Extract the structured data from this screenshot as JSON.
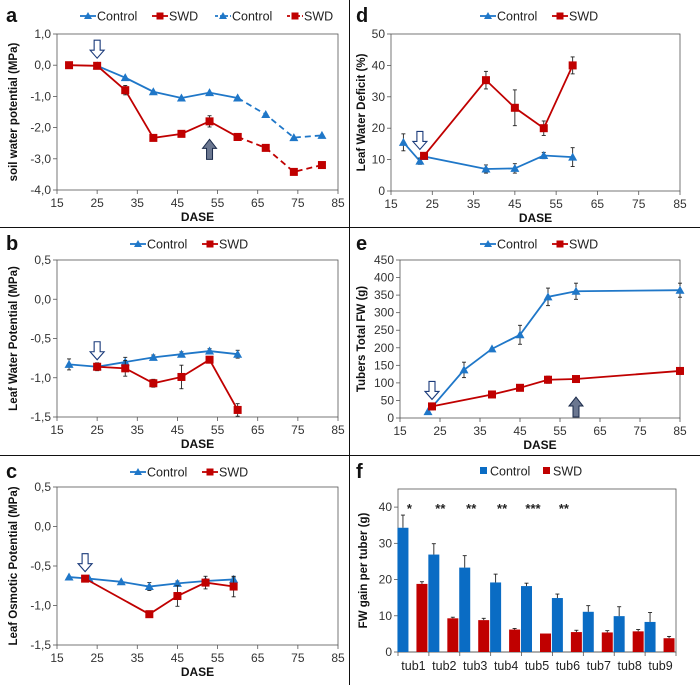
{
  "colors": {
    "control": "#1f77c8",
    "swd": "#c00000",
    "bar_control": "#0a6cc4",
    "bar_swd": "#c00000",
    "axis": "#444444"
  },
  "chart_data": [
    {
      "id": "a",
      "type": "line",
      "panel_label": "a",
      "xlabel": "DASE",
      "ylabel": "soil water potential (MPa)",
      "xlim": [
        15,
        85
      ],
      "xticks": [
        15,
        25,
        35,
        45,
        55,
        65,
        75,
        85
      ],
      "ylim": [
        -4.0,
        1.0
      ],
      "yticks": [
        -4.0,
        -3.0,
        -2.0,
        -1.0,
        0.0,
        1.0
      ],
      "ytick_labels": [
        "-4,0",
        "-3,0",
        "-2,0",
        "-1,0",
        "0,0",
        "1,0"
      ],
      "legend": [
        "Control",
        "SWD",
        "Control",
        "SWD"
      ],
      "series": [
        {
          "name": "Control",
          "marker": "triangle",
          "style": "solid",
          "x": [
            25,
            32,
            39,
            46,
            53,
            60
          ],
          "y": [
            -0.02,
            -0.4,
            -0.85,
            -1.05,
            -0.88,
            -1.05
          ]
        },
        {
          "name": "SWD",
          "marker": "square",
          "style": "solid",
          "x": [
            18,
            25,
            32,
            39,
            46,
            53,
            60
          ],
          "y": [
            0.0,
            -0.02,
            -0.8,
            -2.33,
            -2.2,
            -1.8,
            -2.3
          ],
          "err": [
            0,
            0,
            0.15,
            0,
            0,
            0.18,
            0
          ]
        },
        {
          "name": "Control",
          "marker": "triangle",
          "style": "dashed",
          "x": [
            60,
            67,
            74,
            81
          ],
          "y": [
            -1.05,
            -1.58,
            -2.32,
            -2.25
          ]
        },
        {
          "name": "SWD",
          "marker": "square",
          "style": "dashed",
          "x": [
            60,
            67,
            74,
            81
          ],
          "y": [
            -2.3,
            -2.65,
            -3.42,
            -3.2
          ]
        }
      ],
      "arrows": [
        {
          "x": 25,
          "y": 0.0,
          "dir": "down",
          "style": "hollow"
        },
        {
          "x": 53,
          "y": -1.8,
          "dir": "up",
          "style": "filled"
        }
      ]
    },
    {
      "id": "d",
      "type": "line",
      "panel_label": "d",
      "xlabel": "DASE",
      "ylabel": "Leaf  Water Deficit (%)",
      "xlim": [
        15,
        85
      ],
      "xticks": [
        15,
        25,
        35,
        45,
        55,
        65,
        75,
        85
      ],
      "ylim": [
        0,
        50
      ],
      "yticks": [
        0,
        10,
        20,
        30,
        40,
        50
      ],
      "ytick_labels": [
        "0",
        "10",
        "20",
        "30",
        "40",
        "50"
      ],
      "legend": [
        "Control",
        "SWD"
      ],
      "series": [
        {
          "name": "Control",
          "marker": "triangle",
          "style": "solid",
          "x": [
            18,
            22,
            23,
            38,
            45,
            52,
            59
          ],
          "y": [
            15.5,
            9.5,
            11.0,
            7.0,
            7.2,
            11.3,
            10.8
          ],
          "err": [
            2.7,
            1.0,
            0,
            1.3,
            1.5,
            1.0,
            3.0
          ]
        },
        {
          "name": "SWD",
          "marker": "square",
          "style": "solid",
          "x": [
            23,
            38,
            45,
            52,
            59
          ],
          "y": [
            11.2,
            35.3,
            26.5,
            20.0,
            40.0
          ],
          "err": [
            0,
            2.8,
            5.7,
            2.3,
            2.7
          ]
        }
      ],
      "arrows": [
        {
          "x": 22,
          "y": 11,
          "dir": "down",
          "style": "hollow"
        }
      ]
    },
    {
      "id": "b",
      "type": "line",
      "panel_label": "b",
      "xlabel": "DASE",
      "ylabel": "Leaf Water Potential (MPa)",
      "xlim": [
        15,
        85
      ],
      "xticks": [
        15,
        25,
        35,
        45,
        55,
        65,
        75,
        85
      ],
      "ylim": [
        -1.5,
        0.5
      ],
      "yticks": [
        -1.5,
        -1.0,
        -0.5,
        0.0,
        0.5
      ],
      "ytick_labels": [
        "-1,5",
        "-1,0",
        "-0,5",
        "0,0",
        "0,5"
      ],
      "legend": [
        "Control",
        "SWD"
      ],
      "series": [
        {
          "name": "Control",
          "marker": "triangle",
          "style": "solid",
          "x": [
            18,
            25,
            32,
            39,
            46,
            53,
            60
          ],
          "y": [
            -0.83,
            -0.86,
            -0.8,
            -0.74,
            -0.7,
            -0.66,
            -0.7
          ],
          "err": [
            0.07,
            0.05,
            0.06,
            0.03,
            0.03,
            0.03,
            0.05
          ]
        },
        {
          "name": "SWD",
          "marker": "square",
          "style": "solid",
          "x": [
            25,
            32,
            39,
            46,
            53,
            60
          ],
          "y": [
            -0.86,
            -0.88,
            -1.07,
            -0.99,
            -0.77,
            -1.41
          ],
          "err": [
            0.03,
            0.1,
            0.05,
            0.15,
            0.03,
            0.08
          ]
        }
      ],
      "arrows": [
        {
          "x": 25,
          "y": -0.86,
          "dir": "down",
          "style": "hollow"
        }
      ]
    },
    {
      "id": "e",
      "type": "line",
      "panel_label": "e",
      "xlabel": "DASE",
      "ylabel": "Tubers Total FW (g)",
      "xlim": [
        15,
        85
      ],
      "xticks": [
        15,
        25,
        35,
        45,
        55,
        65,
        75,
        85
      ],
      "ylim": [
        0,
        450
      ],
      "yticks": [
        0,
        50,
        100,
        150,
        200,
        250,
        300,
        350,
        400,
        450
      ],
      "ytick_labels": [
        "0",
        "50",
        "100",
        "150",
        "200",
        "250",
        "300",
        "350",
        "400",
        "450"
      ],
      "legend": [
        "Control",
        "SWD"
      ],
      "series": [
        {
          "name": "Control",
          "marker": "triangle",
          "style": "solid",
          "x": [
            22,
            31,
            38,
            45,
            52,
            59,
            85
          ],
          "y": [
            18,
            137,
            197,
            237,
            345,
            361,
            364
          ],
          "err": [
            0,
            22,
            0,
            27,
            25,
            23,
            20
          ]
        },
        {
          "name": "SWD",
          "marker": "square",
          "style": "solid",
          "x": [
            23,
            38,
            45,
            52,
            59,
            85
          ],
          "y": [
            33,
            67,
            86,
            109,
            111,
            134
          ],
          "err": [
            10,
            0,
            0,
            10,
            0,
            10
          ]
        }
      ],
      "arrows": [
        {
          "x": 23,
          "y": 33,
          "dir": "down",
          "style": "hollow"
        },
        {
          "x": 59,
          "y": 111,
          "dir": "up",
          "style": "filled"
        }
      ]
    },
    {
      "id": "c",
      "type": "line",
      "panel_label": "c",
      "xlabel": "DASE",
      "ylabel": "Leaf Osmotic Potential (MPa)",
      "xlim": [
        15,
        85
      ],
      "xticks": [
        15,
        25,
        35,
        45,
        55,
        65,
        75,
        85
      ],
      "ylim": [
        -1.5,
        0.5
      ],
      "yticks": [
        -1.5,
        -1.0,
        -0.5,
        0.0,
        0.5
      ],
      "ytick_labels": [
        "-1,5",
        "-1,0",
        "-0,5",
        "0,0",
        "0,5"
      ],
      "legend": [
        "Control",
        "SWD"
      ],
      "series": [
        {
          "name": "Control",
          "marker": "triangle",
          "style": "solid",
          "x": [
            18,
            23,
            31,
            38,
            45,
            52,
            59
          ],
          "y": [
            -0.64,
            -0.66,
            -0.7,
            -0.76,
            -0.72,
            -0.69,
            -0.67
          ],
          "err": [
            0,
            0,
            0,
            0.05,
            0.03,
            0.02,
            0.03
          ]
        },
        {
          "name": "SWD",
          "marker": "square",
          "style": "solid",
          "x": [
            22,
            38,
            45,
            52,
            59
          ],
          "y": [
            -0.66,
            -1.11,
            -0.88,
            -0.71,
            -0.76
          ],
          "err": [
            0,
            0.04,
            0.13,
            0.08,
            0.13
          ]
        }
      ],
      "arrows": [
        {
          "x": 22,
          "y": -0.66,
          "dir": "down",
          "style": "hollow"
        }
      ]
    },
    {
      "id": "f",
      "type": "bar",
      "panel_label": "f",
      "xlabel": "",
      "ylabel": "FW gain per tuber (g)",
      "ylim": [
        0,
        45
      ],
      "yticks": [
        0,
        10,
        20,
        30,
        40
      ],
      "ytick_labels": [
        "0",
        "10",
        "20",
        "30",
        "40"
      ],
      "legend": [
        "Control",
        "SWD"
      ],
      "categories": [
        "tub1",
        "tub2",
        "tub3",
        "tub4",
        "tub5",
        "tub6",
        "tub7",
        "tub8",
        "tub9"
      ],
      "series": [
        {
          "name": "Control",
          "values": [
            34.3,
            26.9,
            23.3,
            19.2,
            18.2,
            14.9,
            11.1,
            9.9,
            8.3
          ],
          "err": [
            3.5,
            3.0,
            3.3,
            2.3,
            0.8,
            1.1,
            1.7,
            2.6,
            2.6
          ]
        },
        {
          "name": "SWD",
          "values": [
            18.8,
            9.3,
            8.8,
            6.2,
            5.1,
            5.5,
            5.4,
            5.7,
            3.8
          ],
          "err": [
            0.6,
            0.3,
            0.5,
            0.3,
            0,
            0.5,
            0.5,
            0.5,
            0.5
          ]
        }
      ],
      "significance": [
        "*",
        "**",
        "**",
        "**",
        "***",
        "**",
        "",
        "",
        ""
      ]
    }
  ]
}
